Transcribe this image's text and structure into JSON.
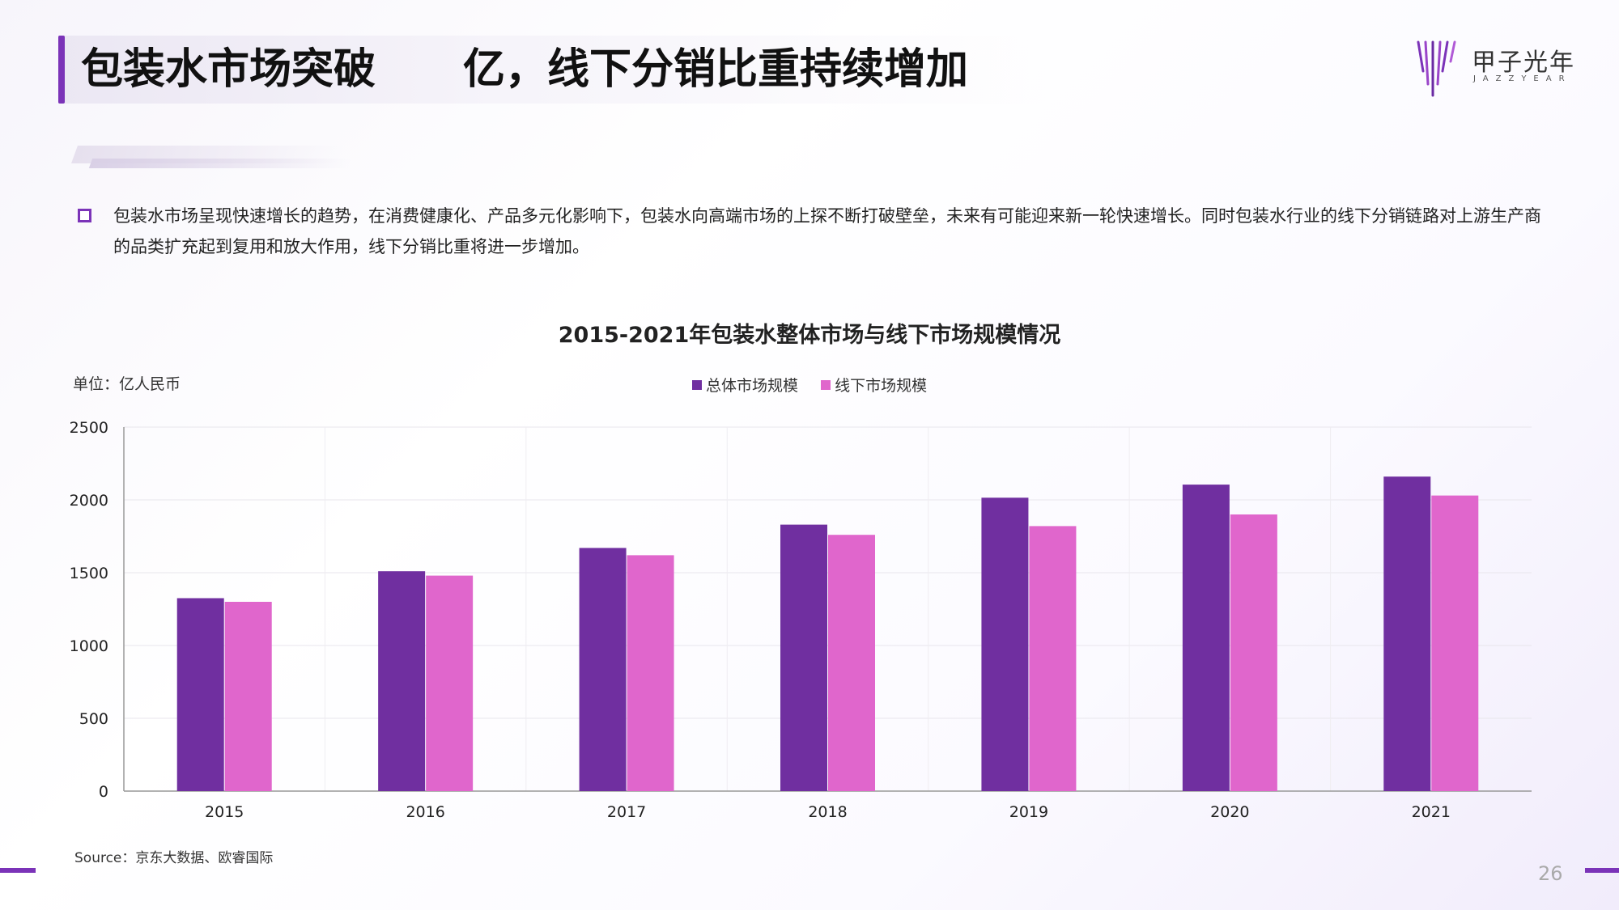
{
  "header": {
    "title_part1": "包装水市场突破",
    "title_part2": "亿，线下分销比重持续增加"
  },
  "brand": {
    "logo_text": "甲子光年",
    "logo_subtext": "JAZZYEAR",
    "accent_color": "#7b33b8"
  },
  "description": {
    "bullet_icon": "hollow-square-bullet",
    "text": "包装水市场呈现快速增长的趋势，在消费健康化、产品多元化影响下，包装水向高端市场的上探不断打破壁垒，未来有可能迎来新一轮快速增长。同时包装水行业的线下分销链路对上游生产商的品类扩充起到复用和放大作用，线下分销比重将进一步增加。"
  },
  "chart_data": {
    "type": "bar",
    "title": "2015-2021年包装水整体市场与线下市场规模情况",
    "unit_label": "单位：亿人民币",
    "categories": [
      "2015",
      "2016",
      "2017",
      "2018",
      "2019",
      "2020",
      "2021"
    ],
    "series": [
      {
        "name": "总体市场规模",
        "color": "#702fa0",
        "values": [
          1325,
          1510,
          1670,
          1830,
          2015,
          2105,
          2160
        ]
      },
      {
        "name": "线下市场规模",
        "color": "#e066cc",
        "values": [
          1300,
          1480,
          1620,
          1760,
          1820,
          1900,
          2030
        ]
      }
    ],
    "ylim": [
      0,
      2500
    ],
    "yticks": [
      "0",
      "500",
      "1000",
      "1500",
      "2000",
      "2500"
    ],
    "grid": true,
    "legend_position": "top-center"
  },
  "footer": {
    "source": "Source：京东大数据、欧睿国际",
    "page_number": "26"
  }
}
